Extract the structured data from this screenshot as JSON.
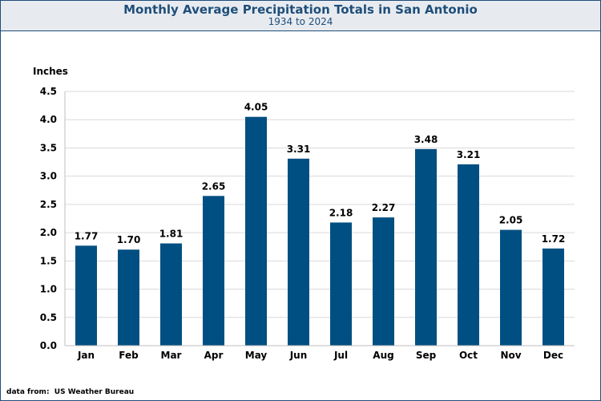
{
  "header": {
    "title": "Monthly Average Precipitation Totals in San Antonio",
    "subtitle": "1934 to 2024"
  },
  "footer": {
    "source": "data from:  US Weather Bureau"
  },
  "colors": {
    "bar": "#004f82",
    "header_bg": "#e7ebf0",
    "title_text": "#1f4e79",
    "grid": "#d9d9d9"
  },
  "chart_data": {
    "type": "bar",
    "ylabel": "Inches",
    "ylim": [
      0,
      4.5
    ],
    "yticks": [
      "0.0",
      "0.5",
      "1.0",
      "1.5",
      "2.0",
      "2.5",
      "3.0",
      "3.5",
      "4.0",
      "4.5"
    ],
    "grid": true,
    "categories": [
      "Jan",
      "Feb",
      "Mar",
      "Apr",
      "May",
      "Jun",
      "Jul",
      "Aug",
      "Sep",
      "Oct",
      "Nov",
      "Dec"
    ],
    "values": [
      1.77,
      1.7,
      1.81,
      2.65,
      4.05,
      3.31,
      2.18,
      2.27,
      3.48,
      3.21,
      2.05,
      1.72
    ],
    "data_labels": [
      "1.77",
      "1.70",
      "1.81",
      "2.65",
      "4.05",
      "3.31",
      "2.18",
      "2.27",
      "3.48",
      "3.21",
      "2.05",
      "1.72"
    ]
  }
}
